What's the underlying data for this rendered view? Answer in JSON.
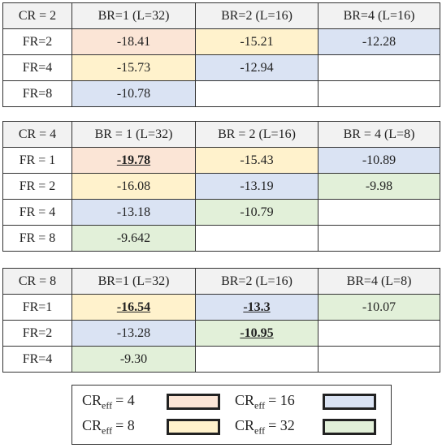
{
  "tables": [
    {
      "header": [
        "CR = 2",
        "BR=1 (L=32)",
        "BR=2 (L=16)",
        "BR=4 (L=16)"
      ],
      "rows": [
        {
          "label": "FR=2",
          "cells": [
            {
              "text": "-18.41",
              "color": "#fbe5d6"
            },
            {
              "text": "-15.21",
              "color": "#fff2cc"
            },
            {
              "text": "-12.28",
              "color": "#dae3f3"
            }
          ]
        },
        {
          "label": "FR=4",
          "cells": [
            {
              "text": "-15.73",
              "color": "#fff2cc"
            },
            {
              "text": "-12.94",
              "color": "#dae3f3"
            },
            null
          ]
        },
        {
          "label": "FR=8",
          "cells": [
            {
              "text": "-10.78",
              "color": "#dae3f3"
            },
            null,
            null
          ]
        }
      ]
    },
    {
      "header": [
        "CR = 4",
        "BR = 1 (L=32)",
        "BR = 2 (L=16)",
        "BR = 4 (L=8)"
      ],
      "rows": [
        {
          "label": "FR = 1",
          "cells": [
            {
              "text": "-19.78",
              "color": "#fbe5d6",
              "bold": true,
              "underline": true
            },
            {
              "text": "-15.43",
              "color": "#fff2cc"
            },
            {
              "text": "-10.89",
              "color": "#dae3f3"
            }
          ]
        },
        {
          "label": "FR = 2",
          "cells": [
            {
              "text": "-16.08",
              "color": "#fff2cc"
            },
            {
              "text": "-13.19",
              "color": "#dae3f3"
            },
            {
              "text": "-9.98",
              "color": "#e2f0d9"
            }
          ]
        },
        {
          "label": "FR = 4",
          "cells": [
            {
              "text": "-13.18",
              "color": "#dae3f3"
            },
            {
              "text": "-10.79",
              "color": "#e2f0d9"
            },
            null
          ]
        },
        {
          "label": "FR = 8",
          "cells": [
            {
              "text": "-9.642",
              "color": "#e2f0d9"
            },
            null,
            null
          ]
        }
      ]
    },
    {
      "header": [
        "CR = 8",
        "BR=1 (L=32)",
        "BR=2 (L=16)",
        "BR=4 (L=8)"
      ],
      "rows": [
        {
          "label": "FR=1",
          "cells": [
            {
              "text": "-16.54",
              "color": "#fff2cc",
              "bold": true,
              "underline": true
            },
            {
              "text": "-13.3",
              "color": "#dae3f3",
              "bold": true,
              "underline": true
            },
            {
              "text": "-10.07",
              "color": "#e2f0d9"
            }
          ]
        },
        {
          "label": "FR=2",
          "cells": [
            {
              "text": "-13.28",
              "color": "#dae3f3"
            },
            {
              "text": "-10.95",
              "color": "#e2f0d9",
              "bold": true,
              "underline": true
            },
            null
          ]
        },
        {
          "label": "FR=4",
          "cells": [
            {
              "text": "-9.30",
              "color": "#e2f0d9"
            },
            null,
            null
          ]
        }
      ]
    }
  ],
  "legend": [
    {
      "base": "CR",
      "sub": "eff",
      "value": "= 4",
      "color": "#fbe5d6"
    },
    {
      "base": "CR",
      "sub": "eff",
      "value": "= 16",
      "color": "#dae3f3"
    },
    {
      "base": "CR",
      "sub": "eff",
      "value": "= 8",
      "color": "#fff2cc"
    },
    {
      "base": "CR",
      "sub": "eff",
      "value": "= 32",
      "color": "#e2f0d9"
    }
  ]
}
